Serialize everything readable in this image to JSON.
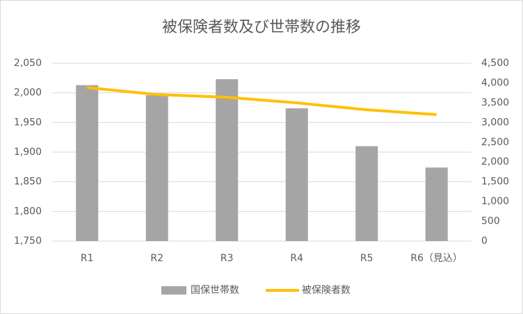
{
  "chart_data": {
    "type": "bar",
    "title": "被保険者数及び世帯数の推移",
    "categories": [
      "R1",
      "R2",
      "R3",
      "R4",
      "R5",
      "R6（見込）"
    ],
    "series": [
      {
        "name": "国保世帯数",
        "color": "#a5a5a5",
        "values": [
          2013,
          1996,
          2023,
          1974,
          1910,
          1874
        ]
      },
      {
        "name": "被保険者数",
        "color": "#ffc000",
        "type": "line",
        "axis": "y2",
        "values": [
          3884,
          3708,
          3638,
          3497,
          3322,
          3199
        ]
      }
    ],
    "ylim": [
      1750,
      2050
    ],
    "yticks": [
      {
        "value": 1750,
        "label": "1,750"
      },
      {
        "value": 1800,
        "label": "1,800"
      },
      {
        "value": 1850,
        "label": "1,850"
      },
      {
        "value": 1900,
        "label": "1,900"
      },
      {
        "value": 1950,
        "label": "1,950"
      },
      {
        "value": 2000,
        "label": "2,000"
      },
      {
        "value": 2050,
        "label": "2,050"
      }
    ],
    "y2lim": [
      0,
      4500
    ],
    "y2ticks": [
      0,
      500,
      {
        "value": 1000,
        "label": "1,000"
      },
      {
        "value": 1500,
        "label": "1,500"
      },
      {
        "value": 2000,
        "label": "2,000"
      },
      {
        "value": 2500,
        "label": "2,500"
      },
      {
        "value": 3000,
        "label": "3,000"
      },
      {
        "value": 3500,
        "label": "3,500"
      },
      {
        "value": 4000,
        "label": "4,000"
      },
      {
        "value": 4500,
        "label": "4,500"
      }
    ],
    "grid": true,
    "legend": "bottom"
  }
}
